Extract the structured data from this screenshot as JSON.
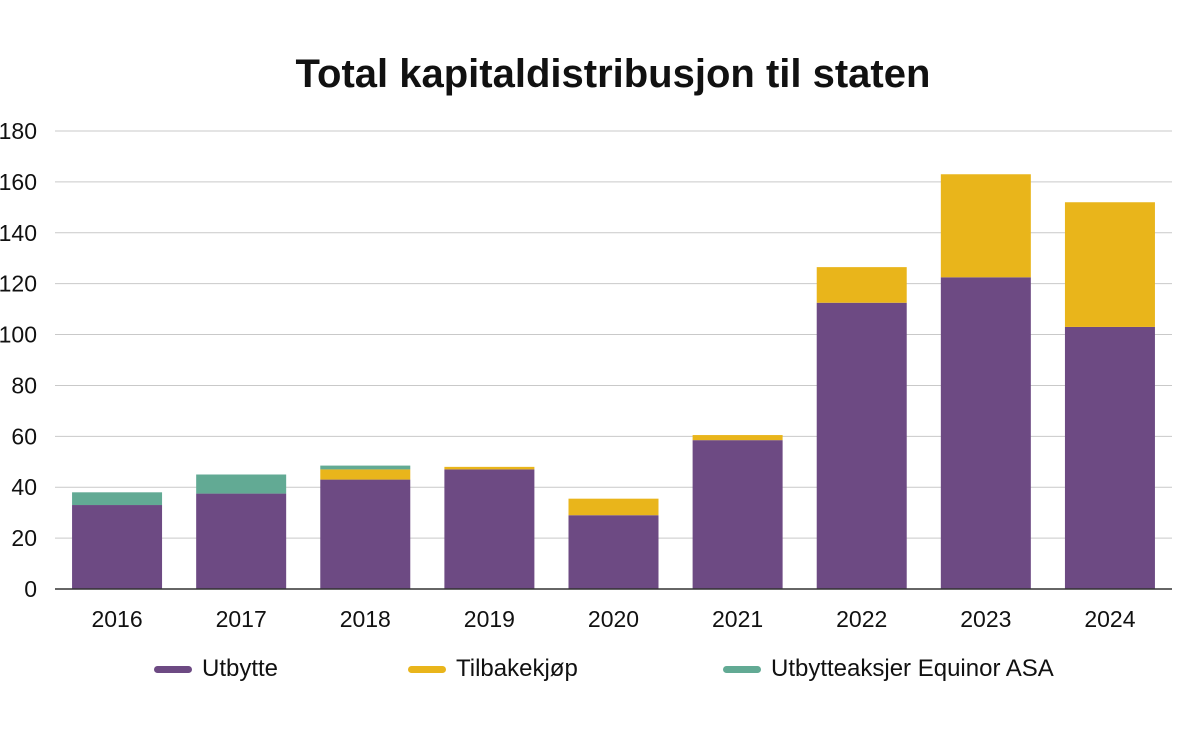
{
  "chart_data": {
    "type": "bar",
    "stacked": true,
    "title": "Total kapitaldistribusjon til staten",
    "xlabel": "",
    "ylabel": "",
    "categories": [
      "2016",
      "2017",
      "2018",
      "2019",
      "2020",
      "2021",
      "2022",
      "2023",
      "2024"
    ],
    "ylim": [
      0,
      180
    ],
    "yticks": [
      0,
      20,
      40,
      60,
      80,
      100,
      120,
      140,
      160,
      180
    ],
    "grid": true,
    "legend_position": "bottom",
    "series": [
      {
        "name": "Utbytte",
        "color": "#6d4a83",
        "values": [
          33,
          37.5,
          43,
          47,
          29,
          58.5,
          112.5,
          122.5,
          103
        ]
      },
      {
        "name": "Tilbakekjøp",
        "color": "#e9b51b",
        "values": [
          0,
          0,
          4,
          1,
          6.5,
          2,
          14,
          40.5,
          49
        ]
      },
      {
        "name": "Utbytteaksjer Equinor ASA",
        "color": "#62aa94",
        "values": [
          5,
          7.5,
          1.5,
          0,
          0,
          0,
          0,
          0,
          0
        ]
      }
    ]
  }
}
